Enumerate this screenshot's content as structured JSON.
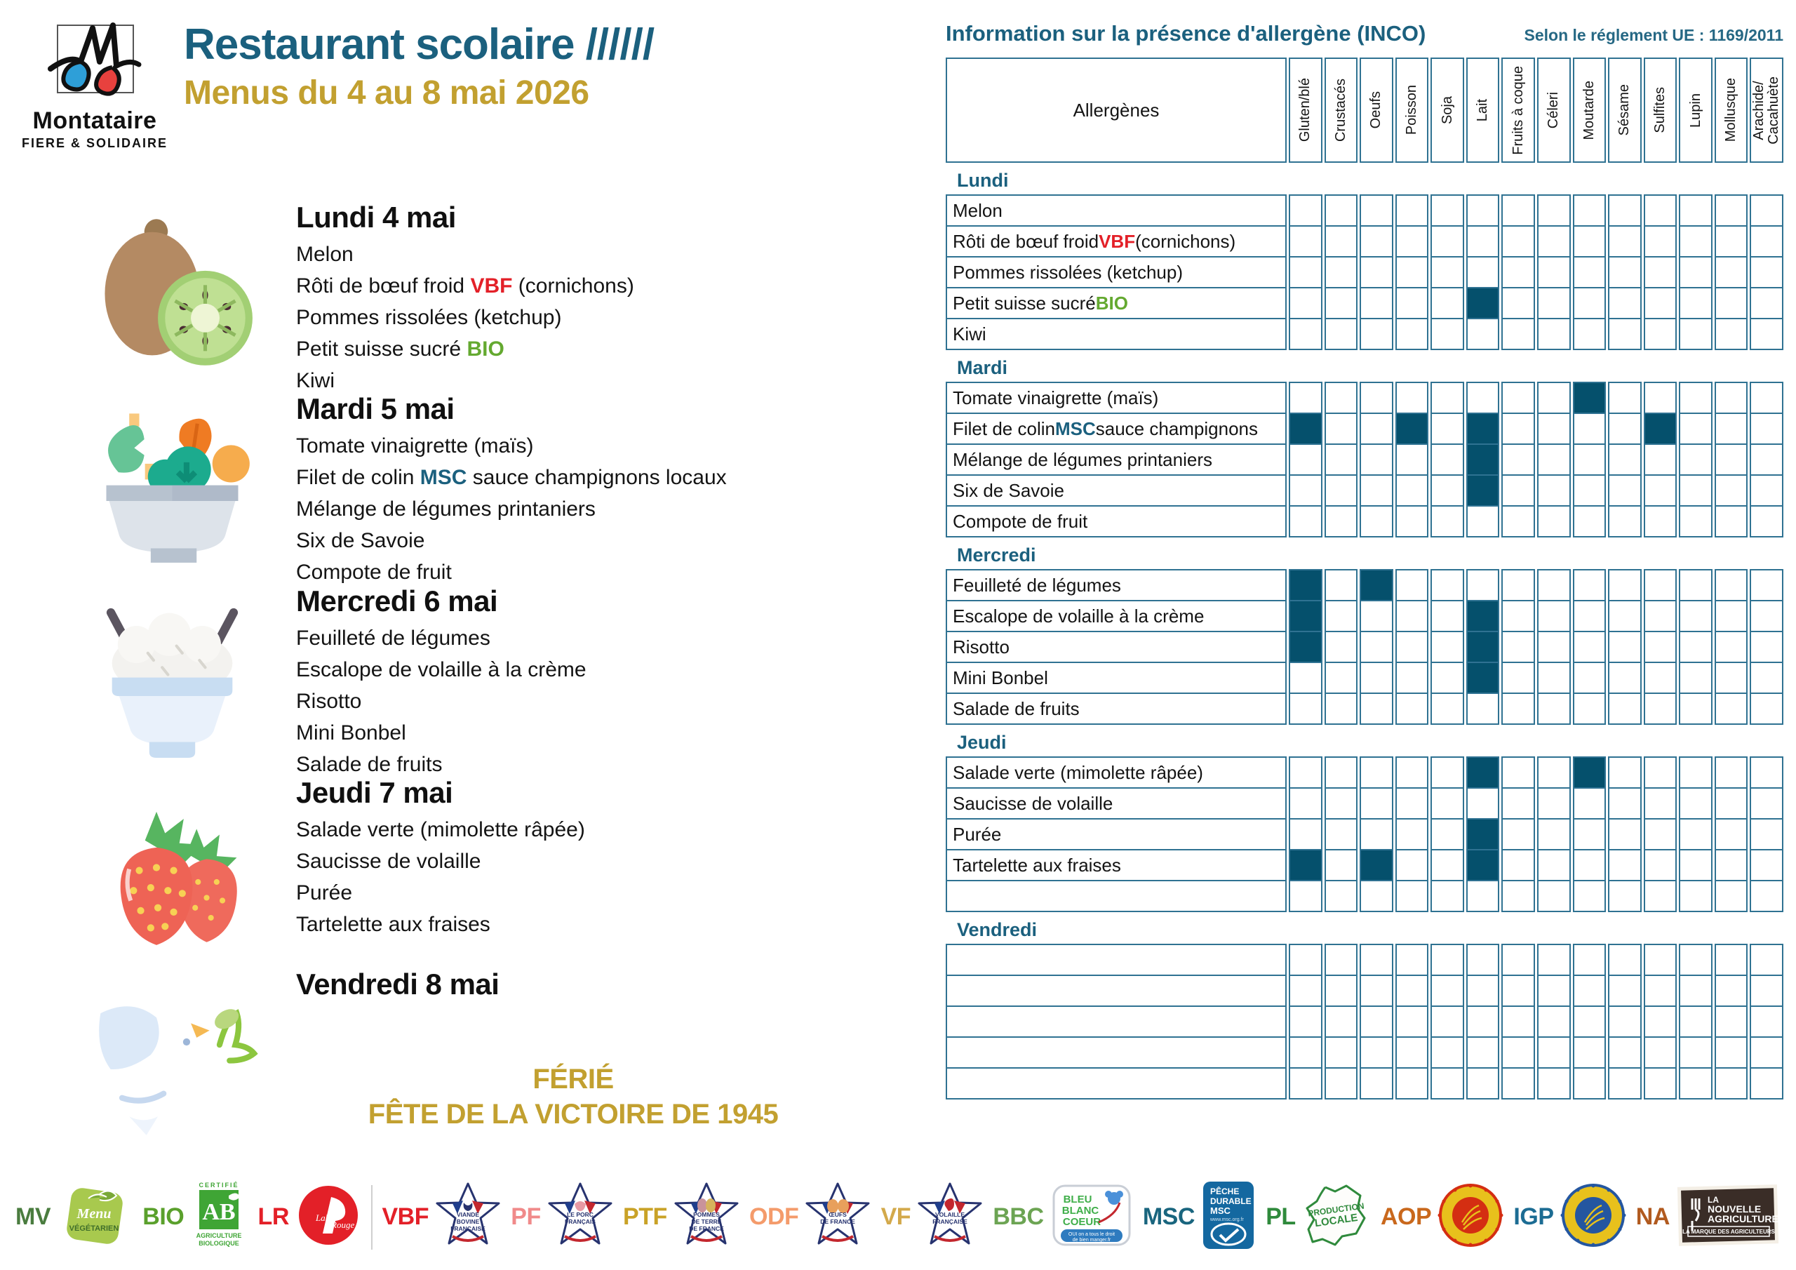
{
  "colors": {
    "teal": "#1b607e",
    "gold": "#c2a030",
    "red": "#e32028",
    "green": "#64a930",
    "blue": "#1b607e",
    "table_border": "#2f7292",
    "cell_fill": "#05506c"
  },
  "header": {
    "logo_name": "Montataire",
    "logo_tagline": "FIERE & SOLIDAIRE",
    "title": "Restaurant scolaire //////",
    "subtitle": "Menus du 4 au 8 mai 2026"
  },
  "menus": [
    {
      "day": "Lundi 4 mai",
      "icon": "kiwi-icon",
      "items": [
        [
          "Melon"
        ],
        [
          "Rôti de bœuf froid ",
          {
            "t": "VBF",
            "c": "red"
          },
          " (cornichons)"
        ],
        [
          "Pommes rissolées (ketchup)"
        ],
        [
          "Petit suisse sucré ",
          {
            "t": "BIO",
            "c": "green"
          }
        ],
        [
          "Kiwi"
        ]
      ]
    },
    {
      "day": "Mardi 5 mai",
      "icon": "salad-bowl-icon",
      "items": [
        [
          "Tomate vinaigrette (maïs)"
        ],
        [
          "Filet de colin ",
          {
            "t": "MSC",
            "c": "blue"
          },
          " sauce champignons locaux"
        ],
        [
          "Mélange de légumes printaniers"
        ],
        [
          "Six de Savoie"
        ],
        [
          "Compote de fruit"
        ]
      ]
    },
    {
      "day": "Mercredi 6 mai",
      "icon": "rice-bowl-icon",
      "items": [
        [
          "Feuilleté de légumes"
        ],
        [
          "Escalope de volaille à la crème"
        ],
        [
          "Risotto"
        ],
        [
          "Mini Bonbel"
        ],
        [
          "Salade de fruits"
        ]
      ]
    },
    {
      "day": "Jeudi 7 mai",
      "icon": "strawberry-icon",
      "items": [
        [
          "Salade verte (mimolette râpée)"
        ],
        [
          "Saucisse de volaille"
        ],
        [
          "Purée"
        ],
        [
          "Tartelette aux fraises"
        ]
      ]
    },
    {
      "day": "Vendredi 8 mai",
      "icon": "dove-icon",
      "items": [],
      "holiday": [
        "FÉRIÉ",
        "FÊTE DE LA VICTOIRE DE 1945"
      ]
    }
  ],
  "allergens": {
    "title": "Information sur la présence d'allergène (INCO)",
    "regulation": "Selon le réglement UE : 1169/2011",
    "corner_label": "Allergènes",
    "columns": [
      "Gluten/blé",
      "Crustacés",
      "Oeufs",
      "Poisson",
      "Soja",
      "Lait",
      "Fruits à coque",
      "Céleri",
      "Moutarde",
      "Sésame",
      "Sulfites",
      "Lupin",
      "Mollusque",
      "Arachide/\nCacahuète"
    ],
    "sections": [
      {
        "day": "Lundi",
        "rows": [
          {
            "label": [
              "Melon"
            ],
            "marks": []
          },
          {
            "label": [
              "Rôti de bœuf froid ",
              {
                "t": "VBF",
                "c": "red"
              },
              " (cornichons)"
            ],
            "marks": []
          },
          {
            "label": [
              "Pommes rissolées (ketchup)"
            ],
            "marks": []
          },
          {
            "label": [
              "Petit suisse sucré ",
              {
                "t": "BIO",
                "c": "green"
              }
            ],
            "marks": [
              5
            ]
          },
          {
            "label": [
              "Kiwi"
            ],
            "marks": []
          }
        ]
      },
      {
        "day": "Mardi",
        "rows": [
          {
            "label": [
              "Tomate vinaigrette (maïs)"
            ],
            "marks": [
              8
            ]
          },
          {
            "label": [
              "Filet de colin ",
              {
                "t": "MSC",
                "c": "blue"
              },
              " sauce champignons"
            ],
            "marks": [
              0,
              3,
              5,
              10
            ]
          },
          {
            "label": [
              "Mélange de légumes printaniers"
            ],
            "marks": [
              5
            ]
          },
          {
            "label": [
              "Six de Savoie"
            ],
            "marks": [
              5
            ]
          },
          {
            "label": [
              "Compote de fruit"
            ],
            "marks": []
          }
        ]
      },
      {
        "day": "Mercredi",
        "rows": [
          {
            "label": [
              "Feuilleté de légumes"
            ],
            "marks": [
              0,
              2
            ]
          },
          {
            "label": [
              "Escalope de volaille à la crème"
            ],
            "marks": [
              0,
              5
            ]
          },
          {
            "label": [
              "Risotto"
            ],
            "marks": [
              0,
              5
            ]
          },
          {
            "label": [
              "Mini Bonbel"
            ],
            "marks": [
              5
            ]
          },
          {
            "label": [
              "Salade de fruits"
            ],
            "marks": []
          }
        ]
      },
      {
        "day": "Jeudi",
        "rows": [
          {
            "label": [
              "Salade verte (mimolette râpée)"
            ],
            "marks": [
              5,
              8
            ]
          },
          {
            "label": [
              "Saucisse de volaille"
            ],
            "marks": []
          },
          {
            "label": [
              "Purée"
            ],
            "marks": [
              5
            ]
          },
          {
            "label": [
              "Tartelette aux fraises"
            ],
            "marks": [
              0,
              2,
              5
            ]
          },
          {
            "label": [
              ""
            ],
            "marks": []
          }
        ]
      },
      {
        "day": "Vendredi",
        "rows": [
          {
            "label": [
              ""
            ],
            "marks": []
          },
          {
            "label": [
              ""
            ],
            "marks": []
          },
          {
            "label": [
              ""
            ],
            "marks": []
          },
          {
            "label": [
              ""
            ],
            "marks": []
          },
          {
            "label": [
              ""
            ],
            "marks": []
          }
        ]
      }
    ]
  },
  "legend": [
    {
      "abbr": "MV",
      "abbr_color": "#4a7c3f",
      "icon": "menu-vegetarien-logo",
      "lines": [
        "Menu",
        "VÉGÉTARIEN"
      ]
    },
    {
      "abbr": "BIO",
      "abbr_color": "#5aa02c",
      "icon": "ab-bio-logo",
      "lines": [
        "CERTIFIÉ",
        "AB",
        "AGRICULTURE",
        "BIOLOGIQUE"
      ]
    },
    {
      "abbr": "LR",
      "abbr_color": "#e32028",
      "icon": "label-rouge-logo",
      "lines": [
        "Label",
        "Rouge"
      ]
    },
    {
      "abbr": "VBF",
      "abbr_color": "#e32028",
      "icon": "vbf-star-logo",
      "lines": [
        "VIANDE",
        "BOVINE",
        "FRANÇAISE"
      ]
    },
    {
      "abbr": "PF",
      "abbr_color": "#f08a8a",
      "icon": "pf-star-logo",
      "lines": [
        "LE PORC",
        "FRANÇAIS"
      ]
    },
    {
      "abbr": "PTF",
      "abbr_color": "#c9a227",
      "icon": "ptf-star-logo",
      "lines": [
        "POMMES",
        "DE TERRE",
        "DE FRANCE"
      ]
    },
    {
      "abbr": "ODF",
      "abbr_color": "#f49b6b",
      "icon": "odf-star-logo",
      "lines": [
        "ŒUFS",
        "DE FRANCE"
      ]
    },
    {
      "abbr": "VF",
      "abbr_color": "#d3a94b",
      "icon": "vf-star-logo",
      "lines": [
        "VOLAILLE",
        "FRANÇAISE"
      ]
    },
    {
      "abbr": "BBC",
      "abbr_color": "#6ca453",
      "icon": "bbc-logo",
      "lines": [
        "BLEU",
        "BLANC",
        "COEUR",
        "OUI on a tous le droit",
        "de bien manger.fr"
      ]
    },
    {
      "abbr": "MSC",
      "abbr_color": "#19657e",
      "icon": "msc-logo",
      "lines": [
        "PÊCHE",
        "DURABLE",
        "MSC",
        "www.msc.org.fr"
      ]
    },
    {
      "abbr": "PL",
      "abbr_color": "#2f8a3c",
      "icon": "production-locale-logo",
      "lines": [
        "PRODUCTION",
        "LOCALE"
      ]
    },
    {
      "abbr": "AOP",
      "abbr_color": "#c9681c",
      "icon": "aop-seal-logo",
      "lines": [
        "APPELLATION D'ORIGINE PROTÉGÉE"
      ]
    },
    {
      "abbr": "IGP",
      "abbr_color": "#1c6c93",
      "icon": "igp-seal-logo",
      "lines": [
        "INDICATION GÉOGRAPHIQUE PROTÉGÉE"
      ]
    },
    {
      "abbr": "NA",
      "abbr_color": "#b15a1f",
      "icon": "nouvelle-agriculture-logo",
      "lines": [
        "LA",
        "NOUVELLE",
        "AGRICULTURE®",
        "LA MARQUE DES AGRICULTEURS"
      ]
    }
  ]
}
